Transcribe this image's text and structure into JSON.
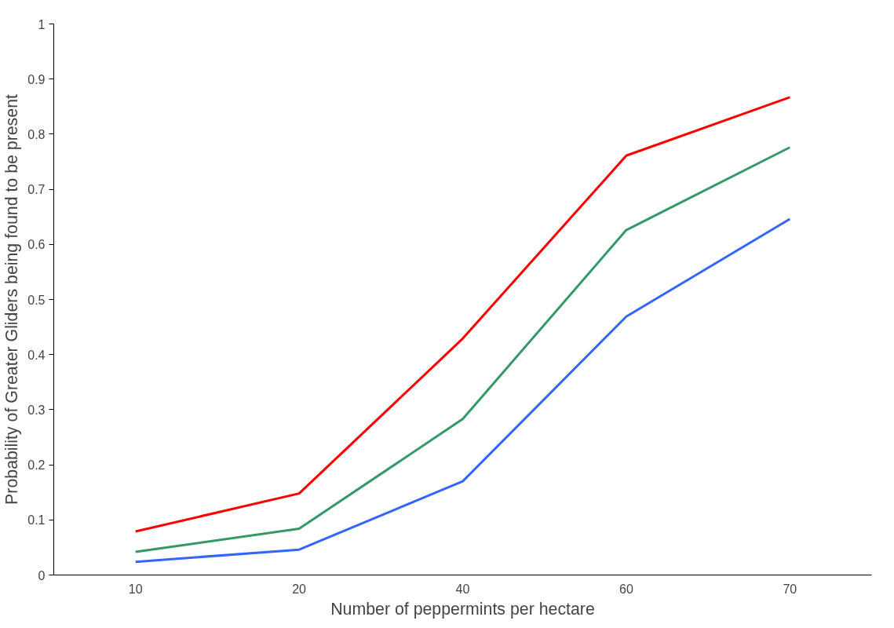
{
  "chart_data": {
    "type": "line",
    "xlabel": "Number of peppermints per hectare",
    "ylabel": "Probability of Greater Gliders being found to be present",
    "categories": [
      "10",
      "20",
      "40",
      "60",
      "70"
    ],
    "series": [
      {
        "color": "#ff0000",
        "values": [
          0.079,
          0.148,
          0.429,
          0.761,
          0.867
        ]
      },
      {
        "color": "#339966",
        "values": [
          0.042,
          0.084,
          0.283,
          0.626,
          0.776
        ]
      },
      {
        "color": "#3366ff",
        "values": [
          0.024,
          0.046,
          0.17,
          0.469,
          0.646
        ]
      }
    ],
    "ylim": [
      0,
      1
    ],
    "yticks": [
      0,
      0.1,
      0.2,
      0.3,
      0.4,
      0.5,
      0.6,
      0.7,
      0.8,
      0.9,
      1
    ],
    "grid": false,
    "marker": "none",
    "line_style": "solid"
  }
}
